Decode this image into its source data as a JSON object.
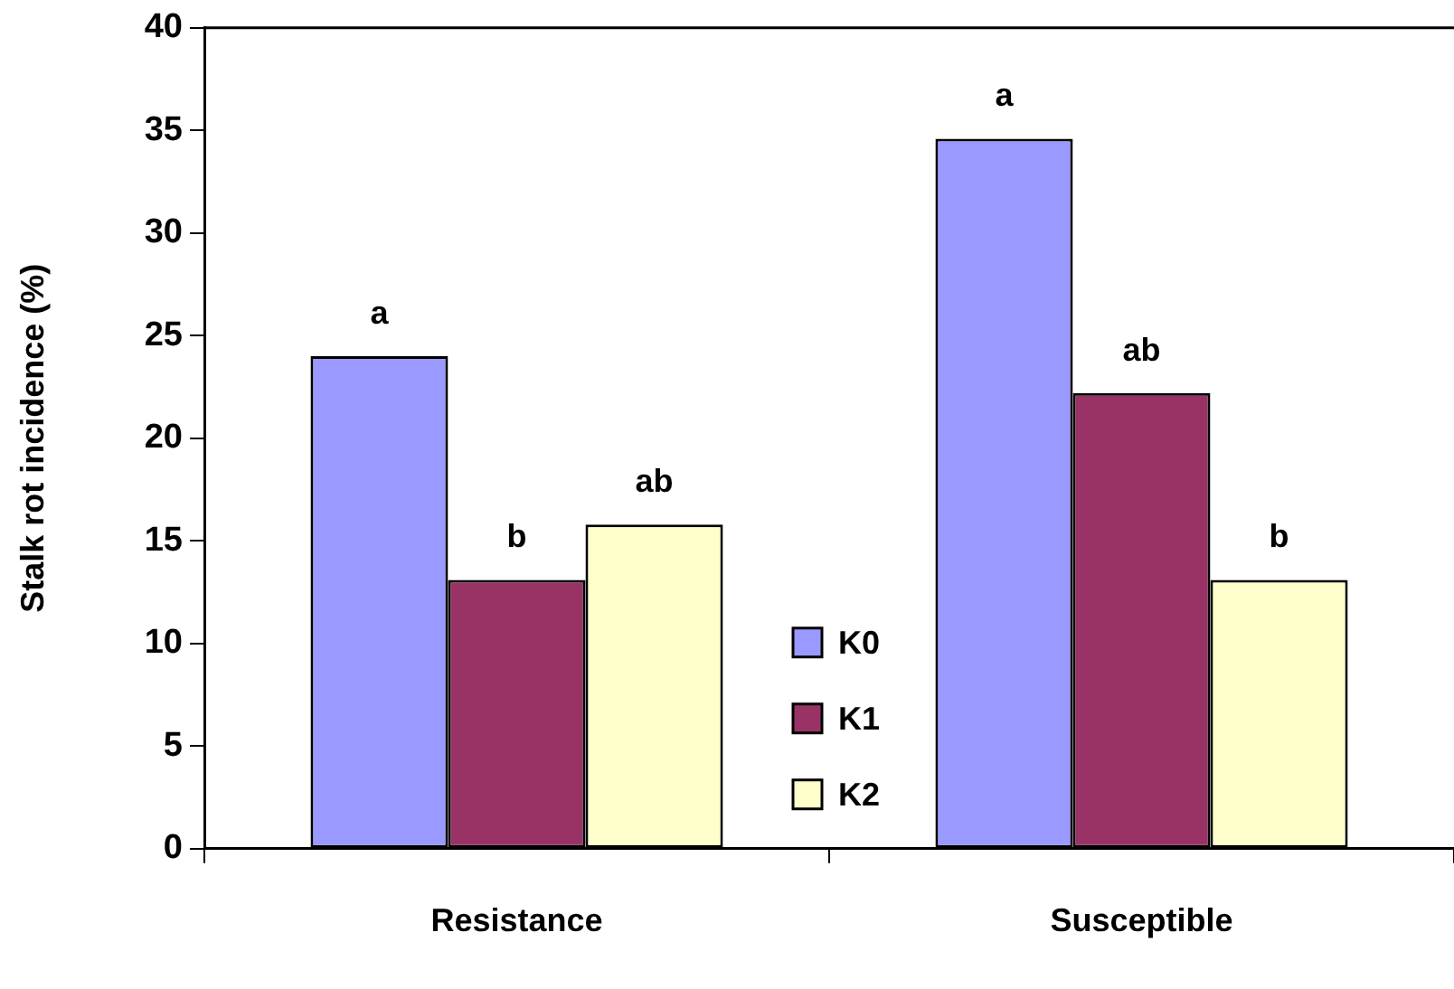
{
  "chart_data": {
    "type": "bar",
    "ylabel": "Stalk rot incidence (%)",
    "categories": [
      "Resistance",
      "Susceptible"
    ],
    "series": [
      {
        "name": "K0",
        "color": "#9999ff",
        "values": [
          24.0,
          34.6
        ],
        "value_labels": [
          "a",
          "a"
        ]
      },
      {
        "name": "K1",
        "color": "#993366",
        "values": [
          13.1,
          22.2
        ],
        "value_labels": [
          "b",
          "ab"
        ]
      },
      {
        "name": "K2",
        "color": "#ffffcc",
        "values": [
          15.8,
          13.1
        ],
        "value_labels": [
          "ab",
          "b"
        ]
      }
    ],
    "ylim": [
      0,
      40
    ],
    "yticks": [
      0,
      5,
      10,
      15,
      20,
      25,
      30,
      35,
      40
    ],
    "grid": false,
    "legend": "bottom"
  }
}
